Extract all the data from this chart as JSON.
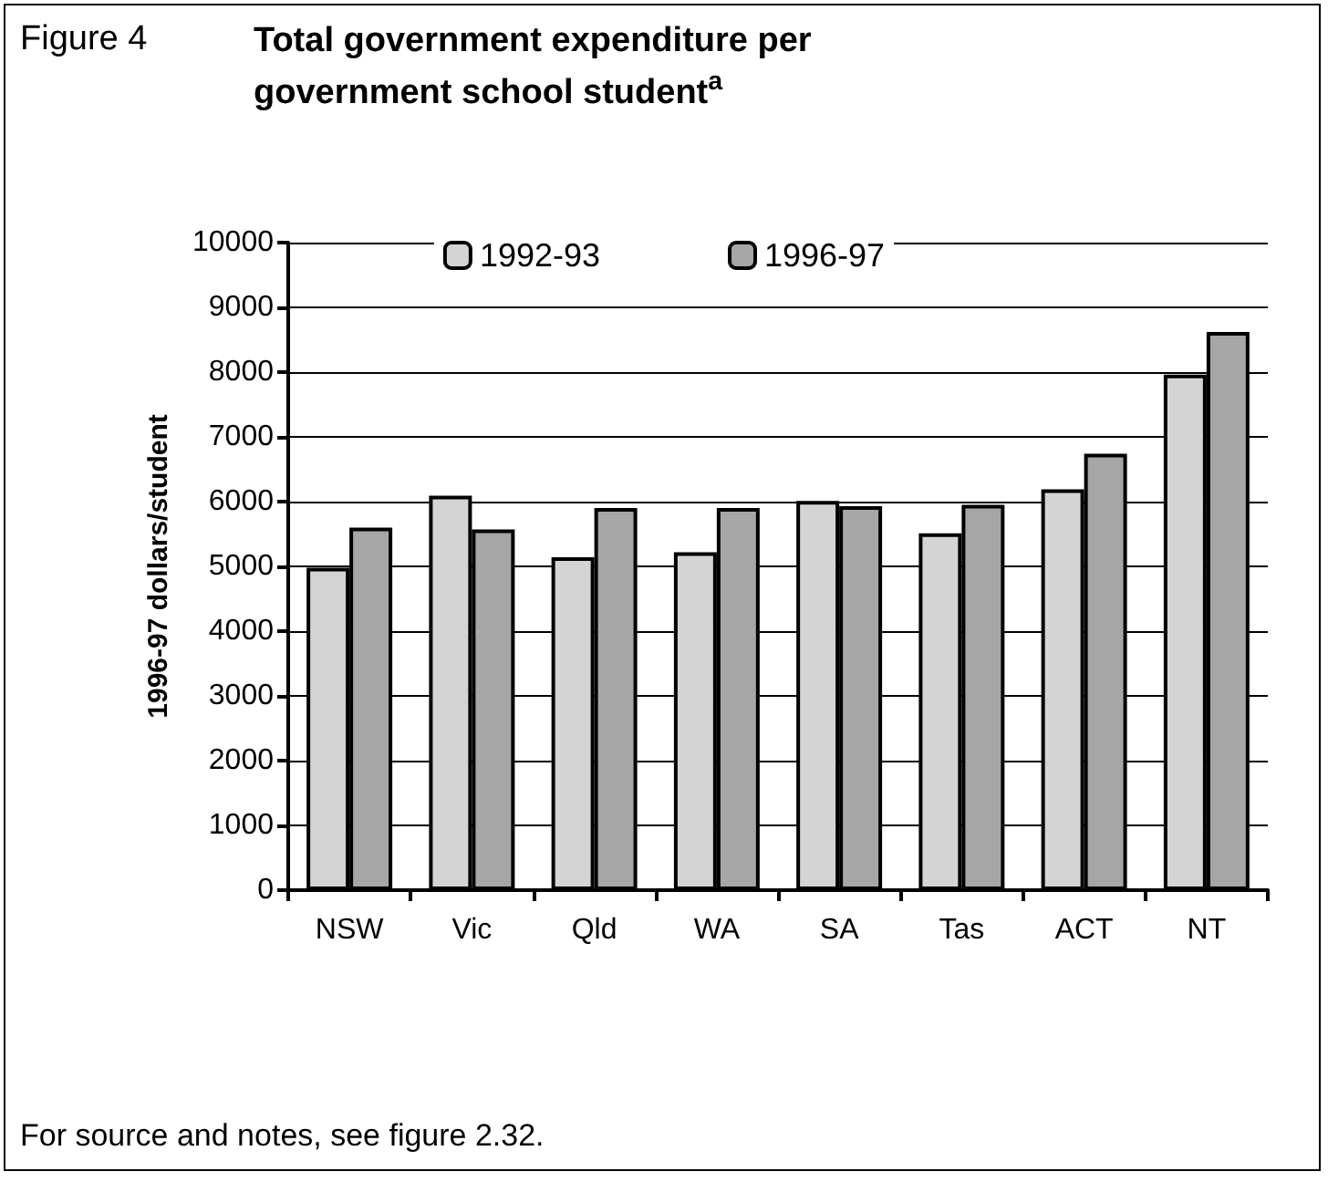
{
  "chart_data": {
    "type": "bar",
    "subtitle": "Figure 4",
    "title": "Total government expenditure per government school student$^{a}$",
    "ylabel": "1996-97 dollars/student",
    "categories": [
      "NSW",
      "Vic",
      "Qld",
      "WA",
      "SA",
      "Tas",
      "ACT",
      "NT"
    ],
    "series": [
      {
        "name": "1992-93",
        "color": "#d4d4d4",
        "values": [
          4980,
          6090,
          5140,
          5220,
          6010,
          5510,
          6190,
          7960
        ]
      },
      {
        "name": "1996-97",
        "color": "#a6a6a6",
        "values": [
          5600,
          5570,
          5900,
          5900,
          5930,
          5950,
          6740,
          8620
        ]
      }
    ],
    "ylim": [
      0,
      10000
    ],
    "yticks": [
      0,
      1000,
      2000,
      3000,
      4000,
      5000,
      6000,
      7000,
      8000,
      9000,
      10000
    ],
    "grid": "y",
    "legend": "top",
    "annotations": [
      "For source and notes, see figure 2.32."
    ]
  }
}
